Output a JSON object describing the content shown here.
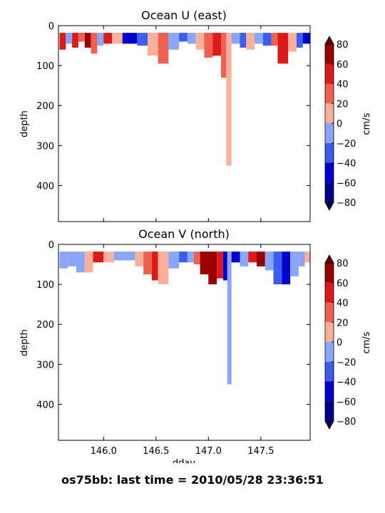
{
  "figure": {
    "footer": "os75bb: last time = 2010/05/28 23:36:51"
  },
  "colors": {
    "levels": [
      "#00008b",
      "#0000cd",
      "#3a5ef0",
      "#8aa6f8",
      "#f8b09a",
      "#f06050",
      "#dd1a1a",
      "#9b0000"
    ],
    "under": "#00004a",
    "over": "#5a0000"
  },
  "chart_data": [
    {
      "type": "heatmap",
      "title": "Ocean U (east)",
      "xlabel": "",
      "ylabel": "depth",
      "xlim": [
        145.57,
        147.97
      ],
      "ylim": [
        490,
        0
      ],
      "xticks": [
        146.0,
        146.5,
        147.0,
        147.5
      ],
      "xtick_labels": [],
      "yticks": [
        0,
        100,
        200,
        300,
        400
      ],
      "ytick_labels": [
        "0",
        "100",
        "200",
        "300",
        "400"
      ],
      "colorbar": {
        "label": "cm/s",
        "ticks": [
          "80",
          "60",
          "40",
          "20",
          "0",
          "−20",
          "−40",
          "−60",
          "−80"
        ],
        "levels": [
          -80,
          -60,
          -40,
          -20,
          0,
          20,
          40,
          60,
          80
        ],
        "extend": "both"
      },
      "columns": [
        {
          "x0": 145.58,
          "x1": 145.64,
          "bot": 60,
          "v": 50
        },
        {
          "x0": 145.64,
          "x1": 145.7,
          "bot": 45,
          "v": -15
        },
        {
          "x0": 145.7,
          "x1": 145.76,
          "bot": 55,
          "v": 55
        },
        {
          "x0": 145.76,
          "x1": 145.82,
          "bot": 40,
          "v": 20
        },
        {
          "x0": 145.82,
          "x1": 145.88,
          "bot": 55,
          "v": 65
        },
        {
          "x0": 145.88,
          "x1": 145.94,
          "bot": 70,
          "v": 30
        },
        {
          "x0": 145.94,
          "x1": 146.0,
          "bot": 50,
          "v": -10
        },
        {
          "x0": 146.0,
          "x1": 146.08,
          "bot": 45,
          "v": 55
        },
        {
          "x0": 146.08,
          "x1": 146.18,
          "bot": 45,
          "v": 15
        },
        {
          "x0": 146.18,
          "x1": 146.32,
          "bot": 45,
          "v": -55
        },
        {
          "x0": 146.32,
          "x1": 146.42,
          "bot": 50,
          "v": -30
        },
        {
          "x0": 146.42,
          "x1": 146.52,
          "bot": 75,
          "v": 15
        },
        {
          "x0": 146.52,
          "x1": 146.62,
          "bot": 95,
          "v": 35
        },
        {
          "x0": 146.62,
          "x1": 146.72,
          "bot": 60,
          "v": -15
        },
        {
          "x0": 146.72,
          "x1": 146.8,
          "bot": 40,
          "v": -35
        },
        {
          "x0": 146.8,
          "x1": 146.88,
          "bot": 45,
          "v": -15
        },
        {
          "x0": 146.88,
          "x1": 146.96,
          "bot": 60,
          "v": 15
        },
        {
          "x0": 146.96,
          "x1": 147.04,
          "bot": 80,
          "v": 25
        },
        {
          "x0": 147.04,
          "x1": 147.12,
          "bot": 75,
          "v": 50
        },
        {
          "x0": 147.12,
          "x1": 147.17,
          "bot": 130,
          "v": 30
        },
        {
          "x0": 147.17,
          "x1": 147.22,
          "bot": 350,
          "v": 12
        },
        {
          "x0": 147.22,
          "x1": 147.3,
          "bot": 45,
          "v": -10
        },
        {
          "x0": 147.3,
          "x1": 147.36,
          "bot": 55,
          "v": -25
        },
        {
          "x0": 147.36,
          "x1": 147.44,
          "bot": 60,
          "v": 10
        },
        {
          "x0": 147.44,
          "x1": 147.52,
          "bot": 45,
          "v": -15
        },
        {
          "x0": 147.52,
          "x1": 147.6,
          "bot": 50,
          "v": -30
        },
        {
          "x0": 147.6,
          "x1": 147.66,
          "bot": 50,
          "v": 25
        },
        {
          "x0": 147.66,
          "x1": 147.76,
          "bot": 95,
          "v": 45
        },
        {
          "x0": 147.76,
          "x1": 147.84,
          "bot": 65,
          "v": 15
        },
        {
          "x0": 147.84,
          "x1": 147.9,
          "bot": 55,
          "v": -30
        },
        {
          "x0": 147.9,
          "x1": 147.97,
          "bot": 45,
          "v": -60
        }
      ]
    },
    {
      "type": "heatmap",
      "title": "Ocean V (north)",
      "xlabel": "dday",
      "ylabel": "depth",
      "xlim": [
        145.57,
        147.97
      ],
      "ylim": [
        490,
        0
      ],
      "xticks": [
        146.0,
        146.5,
        147.0,
        147.5
      ],
      "xtick_labels": [
        "146.0",
        "146.5",
        "147.0",
        "147.5"
      ],
      "yticks": [
        0,
        100,
        200,
        300,
        400
      ],
      "ytick_labels": [
        "0",
        "100",
        "200",
        "300",
        "400"
      ],
      "colorbar": {
        "label": "cm/s",
        "ticks": [
          "80",
          "60",
          "40",
          "20",
          "0",
          "−20",
          "−40",
          "−60",
          "−80"
        ],
        "levels": [
          -80,
          -60,
          -40,
          -20,
          0,
          20,
          40,
          60,
          80
        ],
        "extend": "both"
      },
      "columns": [
        {
          "x0": 145.58,
          "x1": 145.66,
          "bot": 60,
          "v": -10
        },
        {
          "x0": 145.66,
          "x1": 145.74,
          "bot": 55,
          "v": -15
        },
        {
          "x0": 145.74,
          "x1": 145.82,
          "bot": 70,
          "v": -10
        },
        {
          "x0": 145.82,
          "x1": 145.9,
          "bot": 70,
          "v": 10
        },
        {
          "x0": 145.9,
          "x1": 146.0,
          "bot": 45,
          "v": 50
        },
        {
          "x0": 146.0,
          "x1": 146.1,
          "bot": 45,
          "v": 15
        },
        {
          "x0": 146.1,
          "x1": 146.2,
          "bot": 40,
          "v": -15
        },
        {
          "x0": 146.2,
          "x1": 146.3,
          "bot": 40,
          "v": -10
        },
        {
          "x0": 146.3,
          "x1": 146.38,
          "bot": 55,
          "v": 10
        },
        {
          "x0": 146.38,
          "x1": 146.46,
          "bot": 75,
          "v": 35
        },
        {
          "x0": 146.46,
          "x1": 146.52,
          "bot": 90,
          "v": 50
        },
        {
          "x0": 146.52,
          "x1": 146.62,
          "bot": 100,
          "v": 15
        },
        {
          "x0": 146.62,
          "x1": 146.72,
          "bot": 60,
          "v": -15
        },
        {
          "x0": 146.72,
          "x1": 146.8,
          "bot": 45,
          "v": -40
        },
        {
          "x0": 146.8,
          "x1": 146.86,
          "bot": 45,
          "v": -15
        },
        {
          "x0": 146.86,
          "x1": 146.92,
          "bot": 50,
          "v": 30
        },
        {
          "x0": 146.92,
          "x1": 147.0,
          "bot": 75,
          "v": 60
        },
        {
          "x0": 147.0,
          "x1": 147.08,
          "bot": 100,
          "v": 70
        },
        {
          "x0": 147.08,
          "x1": 147.14,
          "bot": 85,
          "v": 50
        },
        {
          "x0": 147.14,
          "x1": 147.18,
          "bot": 90,
          "v": -50
        },
        {
          "x0": 147.18,
          "x1": 147.22,
          "bot": 350,
          "v": -15
        },
        {
          "x0": 147.22,
          "x1": 147.3,
          "bot": 45,
          "v": -60
        },
        {
          "x0": 147.3,
          "x1": 147.38,
          "bot": 55,
          "v": -20
        },
        {
          "x0": 147.38,
          "x1": 147.46,
          "bot": 45,
          "v": 45
        },
        {
          "x0": 147.46,
          "x1": 147.54,
          "bot": 55,
          "v": 60
        },
        {
          "x0": 147.54,
          "x1": 147.62,
          "bot": 65,
          "v": -15
        },
        {
          "x0": 147.62,
          "x1": 147.7,
          "bot": 100,
          "v": -35
        },
        {
          "x0": 147.7,
          "x1": 147.78,
          "bot": 100,
          "v": -55
        },
        {
          "x0": 147.78,
          "x1": 147.86,
          "bot": 80,
          "v": -20
        },
        {
          "x0": 147.86,
          "x1": 147.92,
          "bot": 55,
          "v": -10
        },
        {
          "x0": 147.92,
          "x1": 147.97,
          "bot": 45,
          "v": 15
        }
      ]
    }
  ]
}
